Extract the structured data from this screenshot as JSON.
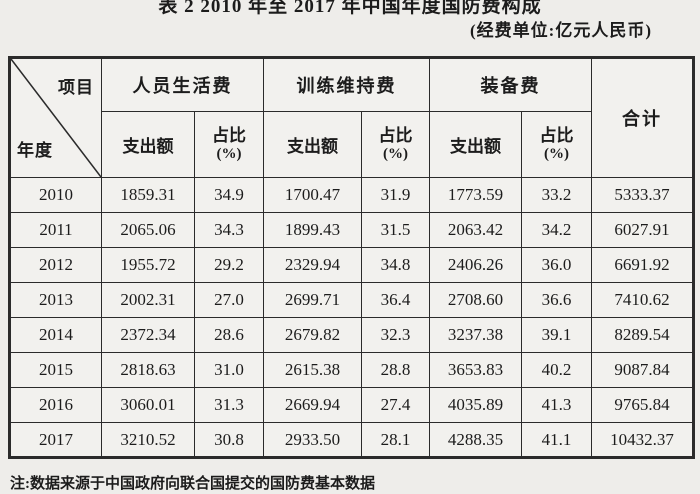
{
  "page": {
    "title": "表 2  2010 年至 2017 年中国年度国防费构成",
    "unit_note": "(经费单位:亿元人民币)",
    "footnote": "注:数据来源于中国政府向联合国提交的国防费基本数据"
  },
  "colors": {
    "paper": "#eeedea",
    "ink": "#1c1c1c",
    "table_line": "#2b2b2b"
  },
  "table": {
    "corner": {
      "top_right": "项目",
      "bottom_left": "年度"
    },
    "groups": [
      {
        "label": "人员生活费"
      },
      {
        "label": "训练维持费"
      },
      {
        "label": "装备费"
      }
    ],
    "sub": {
      "amount": "支出额",
      "share_line1": "占比",
      "share_line2": "(%)"
    },
    "total_label": "合计",
    "rows": [
      {
        "year": "2010",
        "values": [
          "1859.31",
          "34.9",
          "1700.47",
          "31.9",
          "1773.59",
          "33.2",
          "5333.37"
        ]
      },
      {
        "year": "2011",
        "values": [
          "2065.06",
          "34.3",
          "1899.43",
          "31.5",
          "2063.42",
          "34.2",
          "6027.91"
        ]
      },
      {
        "year": "2012",
        "values": [
          "1955.72",
          "29.2",
          "2329.94",
          "34.8",
          "2406.26",
          "36.0",
          "6691.92"
        ]
      },
      {
        "year": "2013",
        "values": [
          "2002.31",
          "27.0",
          "2699.71",
          "36.4",
          "2708.60",
          "36.6",
          "7410.62"
        ]
      },
      {
        "year": "2014",
        "values": [
          "2372.34",
          "28.6",
          "2679.82",
          "32.3",
          "3237.38",
          "39.1",
          "8289.54"
        ]
      },
      {
        "year": "2015",
        "values": [
          "2818.63",
          "31.0",
          "2615.38",
          "28.8",
          "3653.83",
          "40.2",
          "9087.84"
        ]
      },
      {
        "year": "2016",
        "values": [
          "3060.01",
          "31.3",
          "2669.94",
          "27.4",
          "4035.89",
          "41.3",
          "9765.84"
        ]
      },
      {
        "year": "2017",
        "values": [
          "3210.52",
          "30.8",
          "2933.50",
          "28.1",
          "4288.35",
          "41.1",
          "10432.37"
        ]
      }
    ]
  }
}
